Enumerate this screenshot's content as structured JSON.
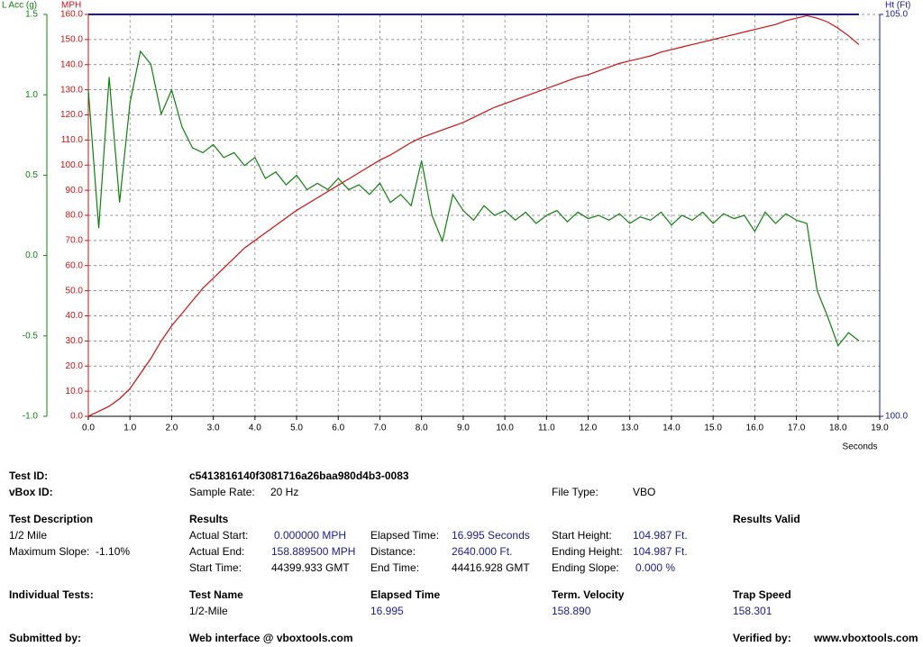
{
  "chart_data": {
    "type": "line",
    "xlabel": "Seconds",
    "grid": true,
    "x": [
      0,
      0.25,
      0.5,
      0.75,
      1,
      1.25,
      1.5,
      1.75,
      2,
      2.25,
      2.5,
      2.75,
      3,
      3.25,
      3.5,
      3.75,
      4,
      4.25,
      4.5,
      4.75,
      5,
      5.25,
      5.5,
      5.75,
      6,
      6.25,
      6.5,
      6.75,
      7,
      7.25,
      7.5,
      7.75,
      8,
      8.25,
      8.5,
      8.75,
      9,
      9.25,
      9.5,
      9.75,
      10,
      10.25,
      10.5,
      10.75,
      11,
      11.25,
      11.5,
      11.75,
      12,
      12.25,
      12.5,
      12.75,
      13,
      13.25,
      13.5,
      13.75,
      14,
      14.25,
      14.5,
      14.75,
      15,
      15.25,
      15.5,
      15.75,
      16,
      16.25,
      16.5,
      16.75,
      17,
      17.25,
      17.5,
      17.75,
      18,
      18.25,
      18.5
    ],
    "series": [
      {
        "name": "MPH",
        "color": "#cc1010",
        "axis": "y",
        "values": [
          0,
          2,
          4,
          7,
          11,
          17,
          23,
          30,
          36,
          41,
          46,
          51,
          55,
          59,
          63,
          67,
          70,
          73,
          76,
          79,
          82,
          84.5,
          87,
          89.5,
          92,
          94.5,
          97,
          99.5,
          102,
          104,
          106.5,
          109,
          111,
          112.5,
          114,
          115.5,
          117,
          119,
          121,
          123,
          124.5,
          126,
          127.5,
          129,
          130.5,
          132,
          133.5,
          135,
          136,
          137.5,
          139,
          140.5,
          141.5,
          142.5,
          143.5,
          145,
          146,
          147,
          148,
          149,
          150,
          151,
          152,
          153,
          154,
          155,
          156,
          157.5,
          158.5,
          159.5,
          158.5,
          157,
          154.5,
          151.5,
          148
        ]
      },
      {
        "name": "L Acc (g)",
        "color": "#108010",
        "axis": "y2",
        "values": [
          1.03,
          0.17,
          1.11,
          0.33,
          0.95,
          1.27,
          1.19,
          0.88,
          1.03,
          0.8,
          0.67,
          0.64,
          0.69,
          0.61,
          0.64,
          0.56,
          0.61,
          0.48,
          0.52,
          0.44,
          0.5,
          0.41,
          0.45,
          0.41,
          0.48,
          0.41,
          0.44,
          0.38,
          0.45,
          0.33,
          0.38,
          0.31,
          0.59,
          0.25,
          0.09,
          0.38,
          0.28,
          0.22,
          0.31,
          0.25,
          0.28,
          0.22,
          0.27,
          0.2,
          0.25,
          0.28,
          0.21,
          0.27,
          0.23,
          0.25,
          0.22,
          0.26,
          0.2,
          0.24,
          0.22,
          0.27,
          0.19,
          0.25,
          0.22,
          0.27,
          0.2,
          0.26,
          0.23,
          0.25,
          0.15,
          0.27,
          0.2,
          0.26,
          0.22,
          0.2,
          -0.22,
          -0.38,
          -0.56,
          -0.48,
          -0.53
        ]
      },
      {
        "name": "Ht (Ft)",
        "color": "#1a1aa0",
        "axis": "y3",
        "values": [
          105,
          105,
          105,
          105,
          105,
          105,
          105,
          105,
          105,
          105,
          105,
          105,
          105,
          105,
          105,
          105,
          105,
          105,
          105,
          105,
          105,
          105,
          105,
          105,
          105,
          105,
          105,
          105,
          105,
          105,
          105,
          105,
          105,
          105,
          105,
          105,
          105,
          105,
          105,
          105,
          105,
          105,
          105,
          105,
          105,
          105,
          105,
          105,
          105,
          105,
          105,
          105,
          105,
          105,
          105,
          105,
          105,
          105,
          105,
          105,
          105,
          105,
          105,
          105,
          105,
          105,
          105,
          105,
          105,
          105,
          105,
          105,
          105,
          105,
          105
        ]
      }
    ],
    "xlim": [
      0,
      19
    ],
    "xticks": [
      {
        "value": 0,
        "label": "0.0"
      },
      {
        "value": 1,
        "label": "1.0"
      },
      {
        "value": 2,
        "label": "2.0"
      },
      {
        "value": 3,
        "label": "3.0"
      },
      {
        "value": 4,
        "label": "4.0"
      },
      {
        "value": 5,
        "label": "5.0"
      },
      {
        "value": 6,
        "label": "6.0"
      },
      {
        "value": 7,
        "label": "7.0"
      },
      {
        "value": 8,
        "label": "8.0"
      },
      {
        "value": 9,
        "label": "9.0"
      },
      {
        "value": 10,
        "label": "10.0"
      },
      {
        "value": 11,
        "label": "11.0"
      },
      {
        "value": 12,
        "label": "12.0"
      },
      {
        "value": 13,
        "label": "13.0"
      },
      {
        "value": 14,
        "label": "14.0"
      },
      {
        "value": 15,
        "label": "15.0"
      },
      {
        "value": 16,
        "label": "16.0"
      },
      {
        "value": 17,
        "label": "17.0"
      },
      {
        "value": 18,
        "label": "18.0"
      },
      {
        "value": 19,
        "label": "19.0"
      }
    ],
    "ylim": [
      0,
      160
    ],
    "yticks": [
      {
        "value": 0,
        "label": "0.0"
      },
      {
        "value": 10,
        "label": "10.0"
      },
      {
        "value": 20,
        "label": "20.0"
      },
      {
        "value": 30,
        "label": "30.0"
      },
      {
        "value": 40,
        "label": "40.0"
      },
      {
        "value": 50,
        "label": "50.0"
      },
      {
        "value": 60,
        "label": "60.0"
      },
      {
        "value": 70,
        "label": "70.0"
      },
      {
        "value": 80,
        "label": "80.0"
      },
      {
        "value": 90,
        "label": "90.0"
      },
      {
        "value": 100,
        "label": "100.0"
      },
      {
        "value": 110,
        "label": "110.0"
      },
      {
        "value": 120,
        "label": "120.0"
      },
      {
        "value": 130,
        "label": "130.0"
      },
      {
        "value": 140,
        "label": "140.0"
      },
      {
        "value": 150,
        "label": "150.0"
      },
      {
        "value": 160,
        "label": "160.0"
      }
    ],
    "y2lim": [
      -1,
      1.5
    ],
    "y2ticks": [
      {
        "value": -1,
        "label": "-1.0"
      },
      -0.5,
      {
        "value": 0,
        "label": "0.0"
      },
      0.5,
      {
        "value": 1,
        "label": "1.0"
      },
      1.5
    ],
    "y3lim": [
      100,
      105
    ],
    "y3ticks": [
      {
        "value": 100,
        "label": "100.0"
      },
      {
        "value": 105,
        "label": "105.0"
      }
    ]
  },
  "report": {
    "test_id_label": "Test ID:",
    "test_id": "c5413816140f3081716a26baa980d4b3-0083",
    "vbox_id_label": "vBox ID:",
    "sample_rate_label": "Sample Rate:",
    "sample_rate": "20 Hz",
    "file_type_label": "File Type:",
    "file_type": "VBO",
    "description_heading": "Test Description",
    "description": "1/2 Mile",
    "max_slope": "Maximum Slope:  -1.10%",
    "results_heading": "Results",
    "results_valid": "Results Valid",
    "actual_start_label": "Actual Start:",
    "actual_start": "0.000000 MPH",
    "actual_end_label": "Actual End:",
    "actual_end": "158.889500 MPH",
    "start_time_label": "Start Time:",
    "start_time": "44399.933 GMT",
    "elapsed_label": "Elapsed Time:",
    "elapsed": "16.995 Seconds",
    "distance_label": "Distance:",
    "distance": "2640.000 Ft.",
    "end_time_label": "End Time:",
    "end_time": "44416.928 GMT",
    "start_height_label": "Start Height:",
    "start_height": "104.987 Ft.",
    "ending_height_label": "Ending Height:",
    "ending_height": "104.987 Ft.",
    "ending_slope_label": "Ending Slope:",
    "ending_slope": "0.000 %",
    "individual_label": "Individual Tests:",
    "columns": [
      "Test Name",
      "Elapsed Time",
      "Term. Velocity",
      "Trap Speed"
    ],
    "row": [
      "1/2-Mile",
      "16.995",
      "158.890",
      "158.301"
    ],
    "submitted_label": "Submitted by:",
    "web_interface": "Web interface @ vboxtools.com",
    "verified_label": "Verified by:",
    "verified": "www.vboxtools.com"
  }
}
